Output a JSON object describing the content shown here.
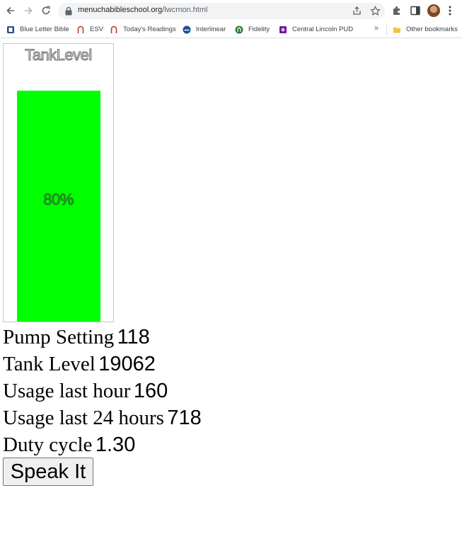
{
  "browser": {
    "url_host": "menuchabibleschool.org",
    "url_path": "/lwcmon.html",
    "bookmarks": [
      {
        "label": "Blue Letter Bible",
        "icon": "blue-letter-bible-icon",
        "color": "#2b4a8a"
      },
      {
        "label": "ESV",
        "icon": "esv-icon",
        "color": "#c0392b"
      },
      {
        "label": "Today's Readings",
        "icon": "todays-readings-icon",
        "color": "#c0392b"
      },
      {
        "label": "Interlinear",
        "icon": "interlinear-icon",
        "color": "#1a4fa0"
      },
      {
        "label": "Fidelity",
        "icon": "fidelity-icon",
        "color": "#2e7d32"
      },
      {
        "label": "Central Lincoln PUD",
        "icon": "central-lincoln-pud-icon",
        "color": "#6a1b9a"
      }
    ],
    "other_bookmarks": "Other bookmarks",
    "overflow": "»"
  },
  "gauge": {
    "title": "TankLevel",
    "level_percent": 80,
    "label": "80%",
    "fill_color": "#00ff00"
  },
  "stats": [
    {
      "label": "Pump Setting",
      "value": "118"
    },
    {
      "label": "Tank Level",
      "value": "19062"
    },
    {
      "label": "Usage last hour",
      "value": "160"
    },
    {
      "label": "Usage last 24 hours",
      "value": "718"
    },
    {
      "label": "Duty cycle",
      "value": "1.30"
    }
  ],
  "speak_button": "Speak It"
}
